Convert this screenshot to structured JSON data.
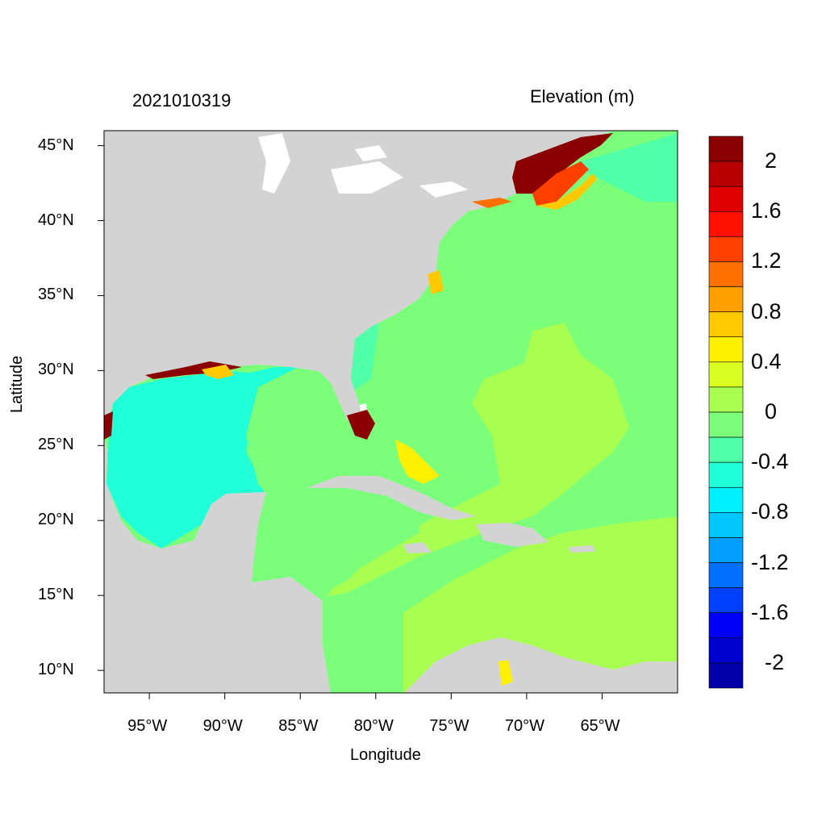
{
  "header": {
    "timestamp": "2021010319",
    "variable_title": "Elevation (m)"
  },
  "axes": {
    "xlabel": "Longitude",
    "ylabel": "Latitude",
    "xticks": [
      {
        "value": -95,
        "label": "95°W"
      },
      {
        "value": -90,
        "label": "90°W"
      },
      {
        "value": -85,
        "label": "85°W"
      },
      {
        "value": -80,
        "label": "80°W"
      },
      {
        "value": -75,
        "label": "75°W"
      },
      {
        "value": -70,
        "label": "70°W"
      },
      {
        "value": -65,
        "label": "65°W"
      }
    ],
    "yticks": [
      {
        "value": 45,
        "label": "45°N"
      },
      {
        "value": 40,
        "label": "40°N"
      },
      {
        "value": 35,
        "label": "35°N"
      },
      {
        "value": 30,
        "label": "30°N"
      },
      {
        "value": 25,
        "label": "25°N"
      },
      {
        "value": 20,
        "label": "20°N"
      },
      {
        "value": 15,
        "label": "15°N"
      },
      {
        "value": 10,
        "label": "10°N"
      }
    ],
    "xlim": [
      -98,
      -60
    ],
    "ylim": [
      8.5,
      46
    ]
  },
  "colorbar": {
    "colors": [
      "#0000a8",
      "#0000d0",
      "#0000f8",
      "#0040ff",
      "#0070ff",
      "#009fff",
      "#00c8ff",
      "#00f0ff",
      "#20ffd8",
      "#50ffa8",
      "#7bff7b",
      "#a8ff50",
      "#d8ff20",
      "#fff000",
      "#ffc800",
      "#ff9f00",
      "#ff7000",
      "#ff4000",
      "#ff1000",
      "#e00000",
      "#b80000",
      "#8b0000"
    ],
    "labels": [
      "2",
      "1.6",
      "1.2",
      "0.8",
      "0.4",
      "0",
      "-0.4",
      "-0.8",
      "-1.2",
      "-1.6",
      "-2"
    ]
  },
  "colors": {
    "land": "#d3d3d3",
    "lakes": "#ffffff",
    "gulf": "#20ffd8",
    "atlantic": "#7bff7b",
    "caribbean": "#a8ff50",
    "surge_high": "#8b0000"
  }
}
